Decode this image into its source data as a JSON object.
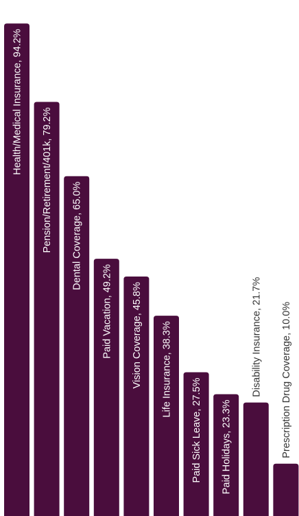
{
  "chart_data": {
    "type": "bar",
    "orientation": "vertical",
    "categories": [
      "Health/Medical Insurance",
      "Pension/Retirement/401k",
      "Dental Coverage",
      "Paid Vacation",
      "Vision Coverage",
      "Life Insurance",
      "Paid Sick Leave",
      "Paid Holidays",
      "Disability Insurance",
      "Prescription Drug Coverage"
    ],
    "values": [
      94.2,
      79.2,
      65.0,
      49.2,
      45.8,
      38.3,
      27.5,
      23.3,
      21.7,
      10.0
    ],
    "labels": [
      "Health/Medical Insurance, 94.2%",
      "Pension/Retirement/401k, 79.2%",
      "Dental Coverage, 65.0%",
      "Paid Vacation, 49.2%",
      "Vision Coverage, 45.8%",
      "Life Insurance, 38.3%",
      "Paid Sick Leave, 27.5%",
      "Paid Holidays, 23.3%",
      "Disability Insurance, 21.7%",
      "Prescription Drug Coverage, 10.0%"
    ],
    "unit": "%",
    "ylim": [
      0,
      100
    ],
    "grid": false,
    "legend": "none",
    "bar_color": "#4a0d3d",
    "label_color_inside": "#ffffff",
    "label_color_outside": "#333333"
  }
}
